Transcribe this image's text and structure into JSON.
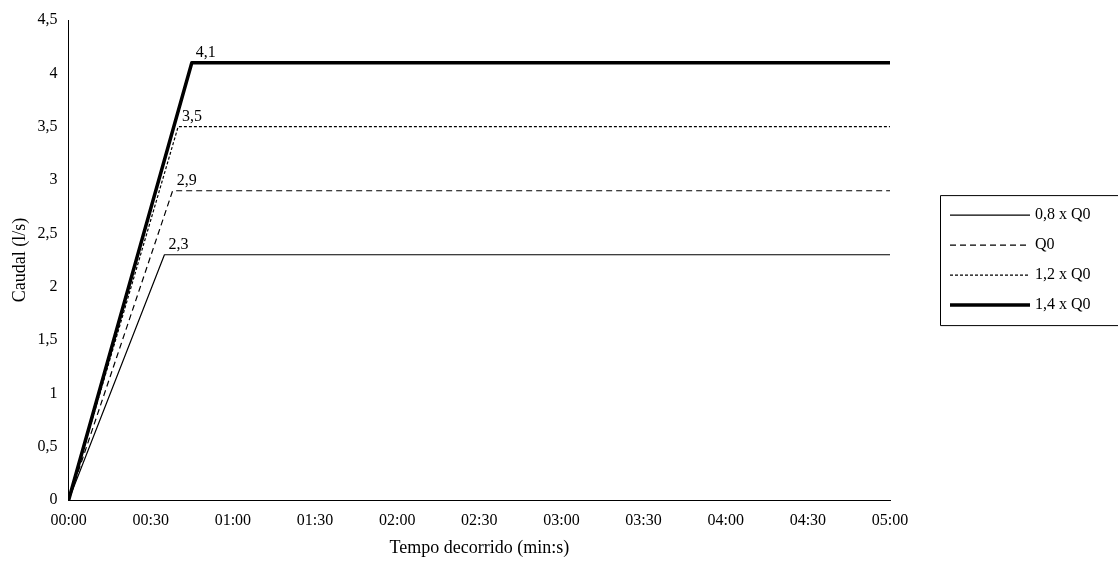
{
  "chart_data": {
    "type": "line",
    "xlabel": "Tempo decorrido (min:s)",
    "ylabel": "Caudal (l/s)",
    "xlim": [
      0,
      300
    ],
    "xticks": [
      {
        "value": 0,
        "label": "00:00"
      },
      {
        "value": 30,
        "label": "00:30"
      },
      {
        "value": 60,
        "label": "01:00"
      },
      {
        "value": 90,
        "label": "01:30"
      },
      {
        "value": 120,
        "label": "02:00"
      },
      {
        "value": 150,
        "label": "02:30"
      },
      {
        "value": 180,
        "label": "03:00"
      },
      {
        "value": 210,
        "label": "03:30"
      },
      {
        "value": 240,
        "label": "04:00"
      },
      {
        "value": 270,
        "label": "04:30"
      },
      {
        "value": 300,
        "label": "05:00"
      }
    ],
    "ylim": [
      0,
      4.5
    ],
    "yticks": [
      0,
      {
        "value": 0.5,
        "label": "0,5"
      },
      1,
      {
        "value": 1.5,
        "label": "1,5"
      },
      2,
      {
        "value": 2.5,
        "label": "2,5"
      },
      3,
      {
        "value": 3.5,
        "label": "3,5"
      },
      4,
      {
        "value": 4.5,
        "label": "4,5"
      }
    ],
    "series": [
      {
        "name": "0,8 x Q0",
        "color": "#000000",
        "line_style": "solid",
        "x": [
          0,
          35,
          300
        ],
        "values": [
          0,
          2.3,
          2.3
        ]
      },
      {
        "name": "Q0",
        "color": "#000000",
        "line_style": "dashed",
        "x": [
          0,
          38,
          300
        ],
        "values": [
          0,
          2.9,
          2.9
        ]
      },
      {
        "name": "1,2 x Q0",
        "color": "#000000",
        "line_style": "dotted",
        "x": [
          0,
          40,
          300
        ],
        "values": [
          0,
          3.5,
          3.5
        ]
      },
      {
        "name": "1,4 x Q0",
        "color": "#000000",
        "line_style": "solid",
        "x": [
          0,
          45,
          300
        ],
        "values": [
          0,
          4.1,
          4.1
        ]
      }
    ],
    "annotations": [
      {
        "text": "2,3",
        "x": 35,
        "y": 2.3
      },
      {
        "text": "2,9",
        "x": 38,
        "y": 2.9
      },
      {
        "text": "3,5",
        "x": 40,
        "y": 3.5
      },
      {
        "text": "4,1",
        "x": 45,
        "y": 4.1
      }
    ],
    "legend": "right",
    "grid": false,
    "marker": "none"
  }
}
